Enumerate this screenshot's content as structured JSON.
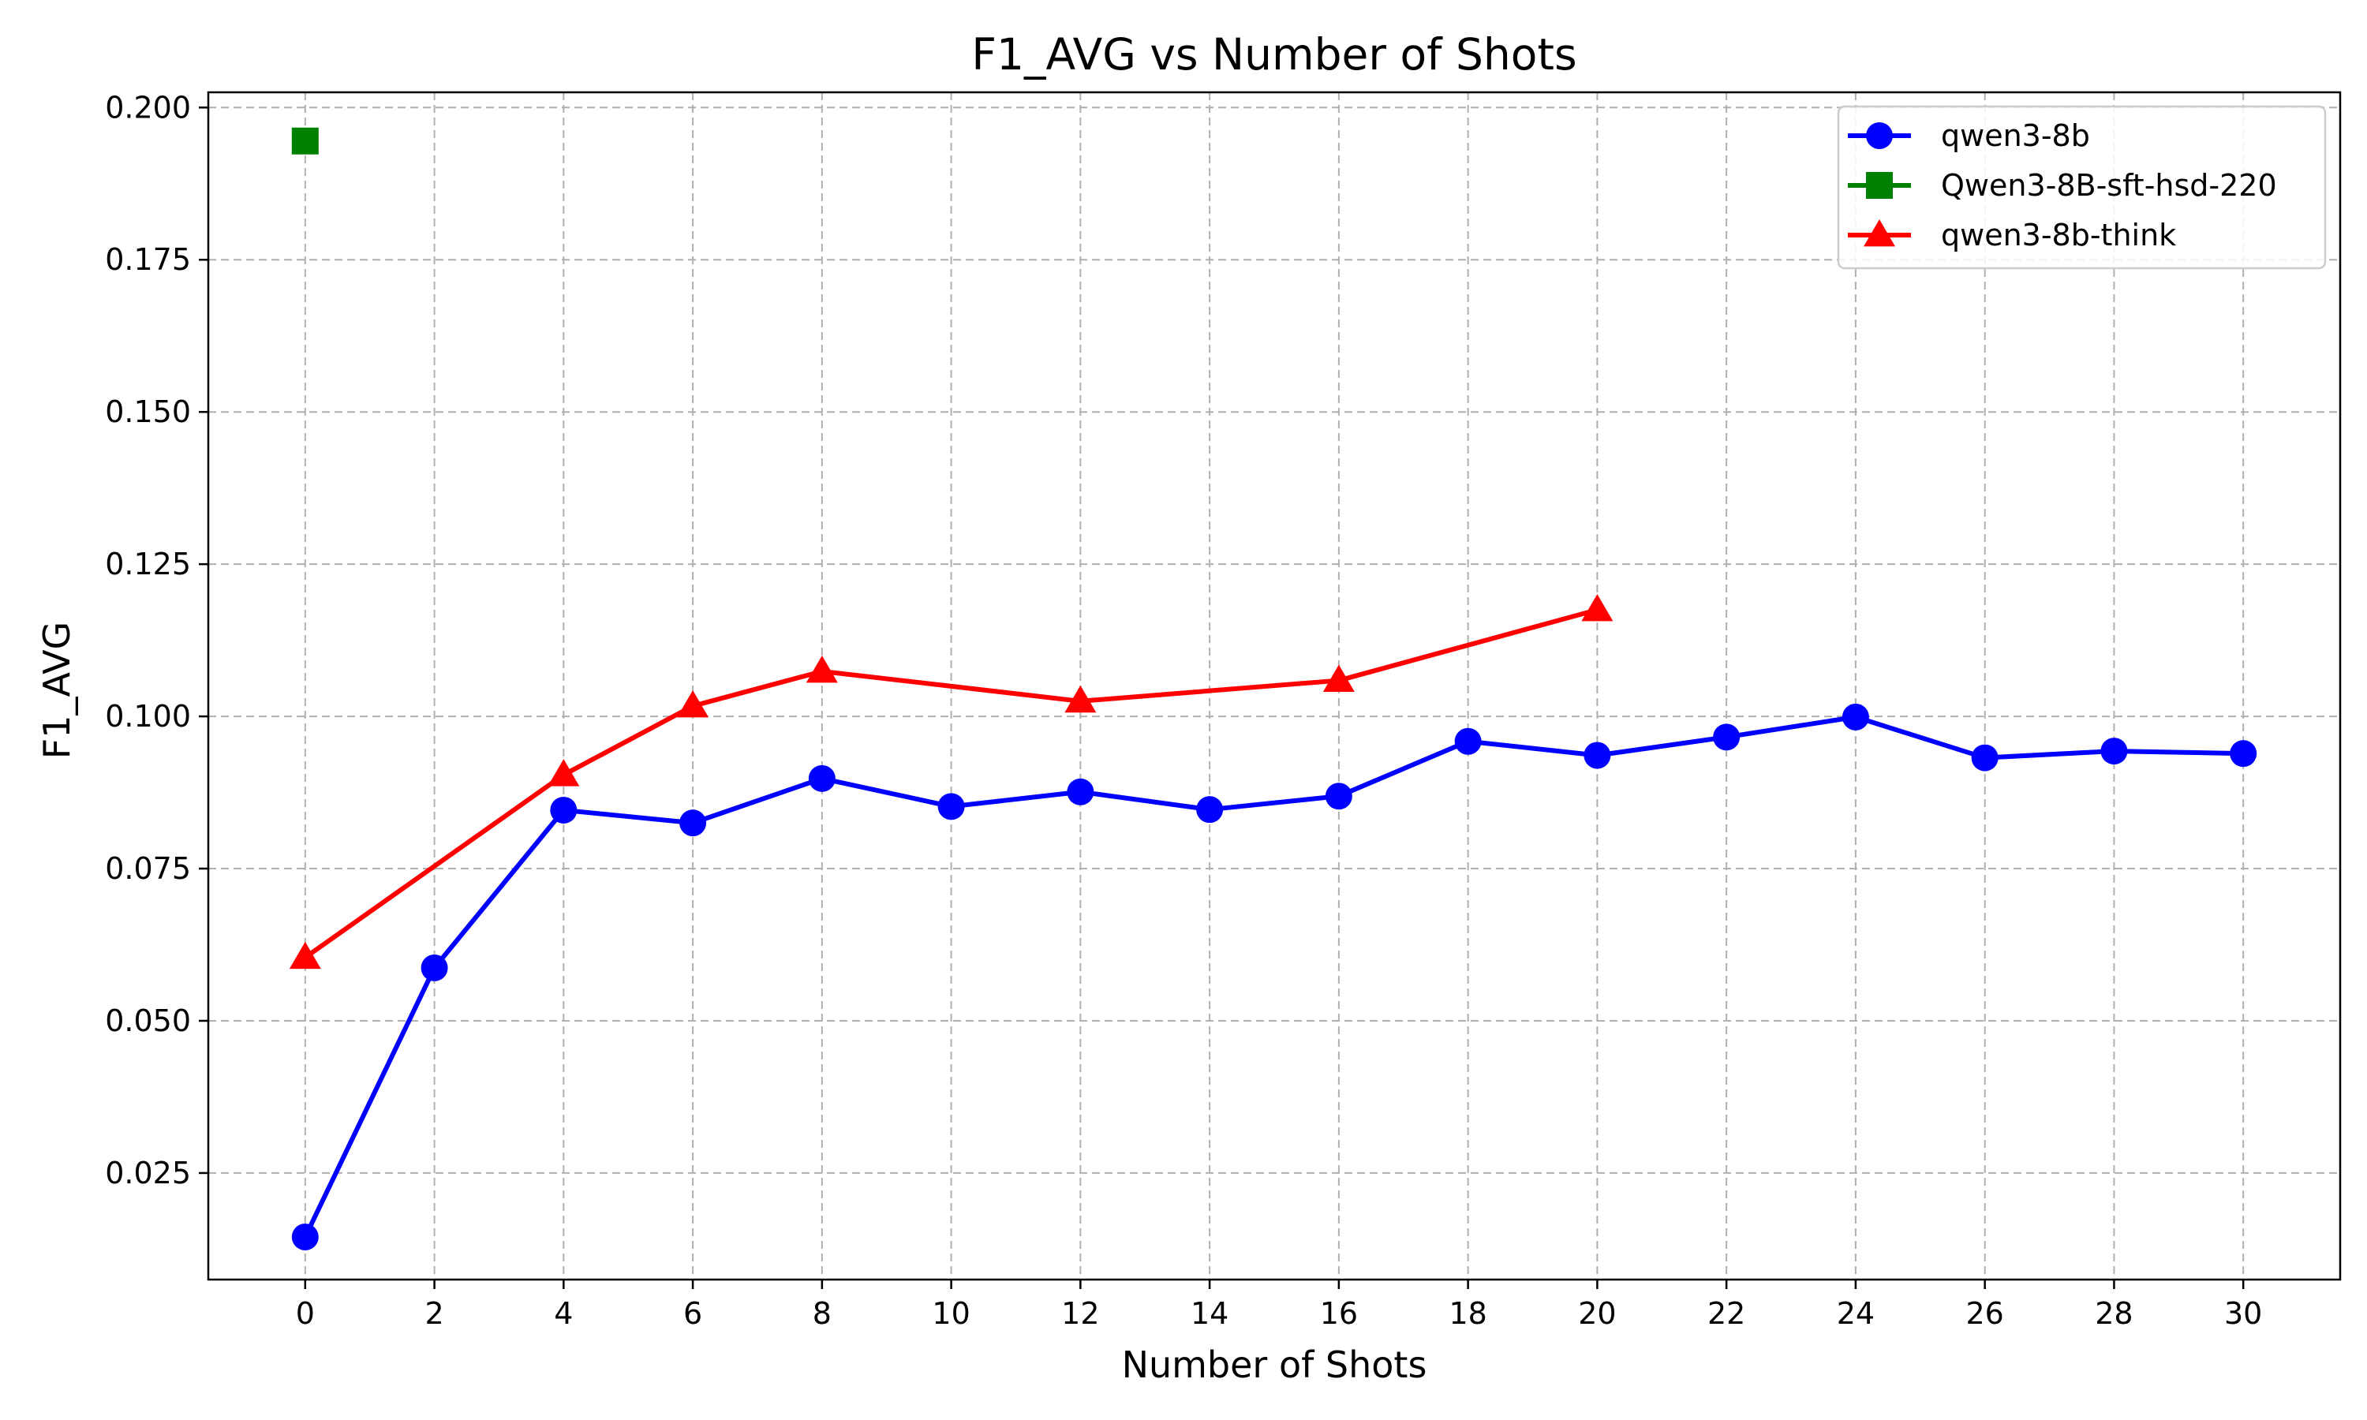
{
  "chart_data": {
    "type": "line",
    "title": "F1_AVG vs Number of Shots",
    "xlabel": "Number of Shots",
    "ylabel": "F1_AVG",
    "xlim": [
      -1.5,
      31.5
    ],
    "ylim": [
      0.0075,
      0.2025
    ],
    "xticks": [
      0,
      2,
      4,
      6,
      8,
      10,
      12,
      14,
      16,
      18,
      20,
      22,
      24,
      26,
      28,
      30
    ],
    "yticks": [
      0.025,
      0.05,
      0.075,
      0.1,
      0.125,
      0.15,
      0.175,
      0.2
    ],
    "ytick_labels": [
      "0.025",
      "0.050",
      "0.075",
      "0.100",
      "0.125",
      "0.150",
      "0.175",
      "0.200"
    ],
    "grid": true,
    "legend_position": "top-right",
    "series": [
      {
        "name": "qwen3-8b",
        "color": "#0000ff",
        "marker": "circle",
        "x": [
          0,
          2,
          4,
          6,
          8,
          10,
          12,
          14,
          16,
          18,
          20,
          22,
          24,
          26,
          28,
          30
        ],
        "y": [
          0.0145,
          0.0587,
          0.0846,
          0.0825,
          0.0898,
          0.0852,
          0.0876,
          0.0847,
          0.0869,
          0.0959,
          0.0936,
          0.0966,
          0.0999,
          0.0932,
          0.0943,
          0.0939
        ]
      },
      {
        "name": "Qwen3-8B-sft-hsd-220",
        "color": "#008000",
        "marker": "square",
        "x": [
          0
        ],
        "y": [
          0.1945
        ]
      },
      {
        "name": "qwen3-8b-think",
        "color": "#ff0000",
        "marker": "triangle",
        "x": [
          0,
          4,
          6,
          8,
          12,
          16,
          20
        ],
        "y": [
          0.0604,
          0.0904,
          0.1017,
          0.1074,
          0.1025,
          0.1059,
          0.1175
        ]
      }
    ]
  }
}
